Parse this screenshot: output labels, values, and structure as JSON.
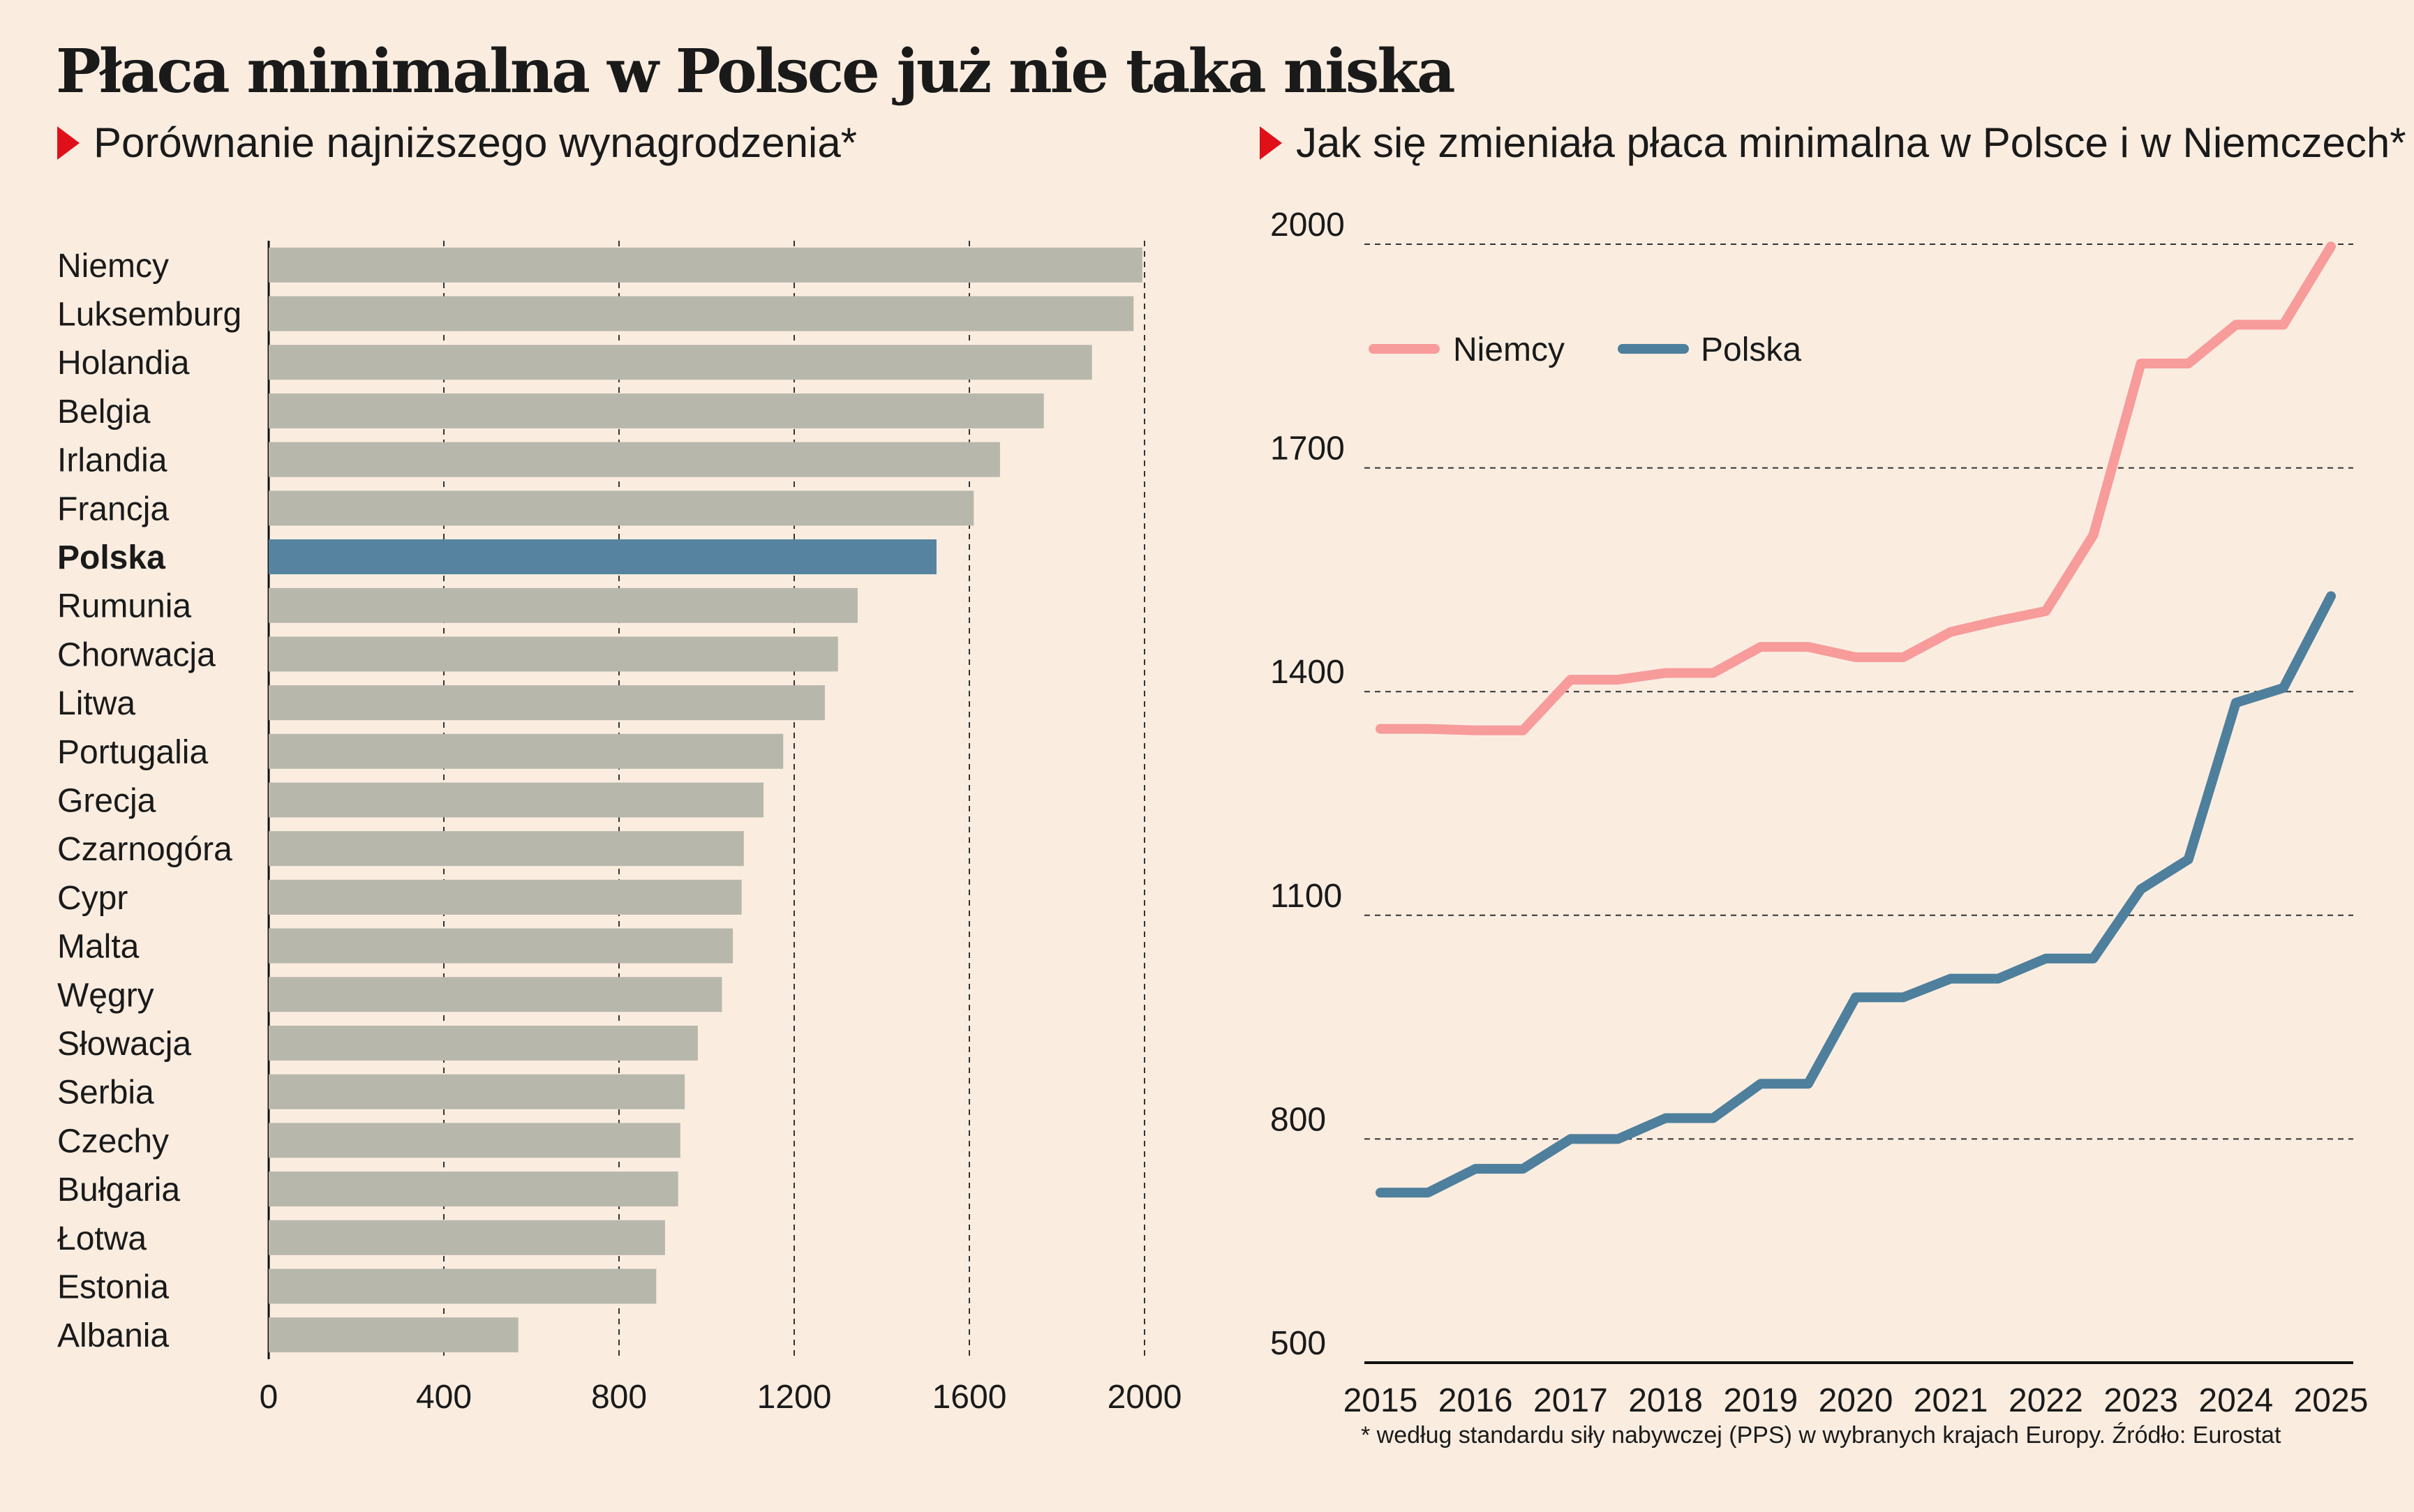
{
  "title": "Płaca minimalna w Polsce już nie taka niska",
  "footnote": "* według standardu siły nabywczej (PPS) w wybranych krajach Europy. Źródło: Eurostat",
  "colors": {
    "background": "#faede0",
    "bar": "#b8b7ac",
    "highlight": "#5583a0",
    "niemcy": "#f79b9b",
    "polska": "#4e7f9c",
    "marker": "#e0101a"
  },
  "chart_data": [
    {
      "type": "bar",
      "orientation": "horizontal",
      "title": "Porównanie najniższego wynagrodzenia*",
      "highlight": "Polska",
      "categories": [
        "Niemcy",
        "Luksemburg",
        "Holandia",
        "Belgia",
        "Irlandia",
        "Francja",
        "Polska",
        "Rumunia",
        "Chorwacja",
        "Litwa",
        "Portugalia",
        "Grecja",
        "Czarnogóra",
        "Cypr",
        "Malta",
        "Węgry",
        "Słowacja",
        "Serbia",
        "Czechy",
        "Bułgaria",
        "Łotwa",
        "Estonia",
        "Albania"
      ],
      "values": [
        1995,
        1975,
        1880,
        1770,
        1670,
        1610,
        1525,
        1345,
        1300,
        1270,
        1175,
        1130,
        1085,
        1080,
        1060,
        1035,
        980,
        950,
        940,
        935,
        905,
        885,
        570
      ],
      "xlim": [
        0,
        2000
      ],
      "xticks": [
        0,
        400,
        800,
        1200,
        1600,
        2000
      ],
      "grid": true
    },
    {
      "type": "line",
      "title": "Jak się zmieniała płaca minimalna w Polsce i w Niemczech*",
      "x_ticks": [
        "2015",
        "2016",
        "2017",
        "2018",
        "2019",
        "2020",
        "2021",
        "2022",
        "2023",
        "2024",
        "2025"
      ],
      "x": [
        2015.0,
        2015.5,
        2016.0,
        2016.5,
        2017.0,
        2017.5,
        2018.0,
        2018.5,
        2019.0,
        2019.5,
        2020.0,
        2020.5,
        2021.0,
        2021.5,
        2022.0,
        2022.5,
        2023.0,
        2023.5,
        2024.0,
        2024.5,
        2025.0
      ],
      "series": [
        {
          "name": "Niemcy",
          "values": [
            1350,
            1350,
            1348,
            1348,
            1416,
            1416,
            1425,
            1425,
            1460,
            1460,
            1446,
            1446,
            1480,
            1495,
            1508,
            1610,
            1840,
            1840,
            1892,
            1892,
            1997
          ]
        },
        {
          "name": "Polska",
          "values": [
            728,
            728,
            760,
            760,
            800,
            800,
            828,
            828,
            874,
            874,
            990,
            990,
            1015,
            1015,
            1042,
            1042,
            1135,
            1175,
            1385,
            1405,
            1528
          ]
        }
      ],
      "ylim": [
        500,
        2000
      ],
      "yticks": [
        500,
        800,
        1100,
        1400,
        1700,
        2000
      ],
      "legend": "top-left",
      "grid": true
    }
  ]
}
